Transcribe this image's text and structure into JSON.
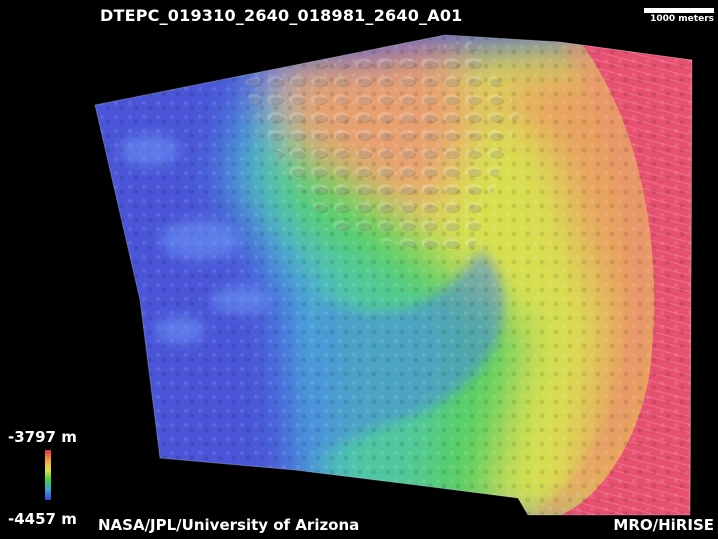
{
  "title": "DTEPC_019310_2640_018981_2640_A01",
  "scale_bar": {
    "label": "1000 meters"
  },
  "legend": {
    "max_label": "-3797 m",
    "min_label": "-4457 m",
    "colors": [
      "#e03040",
      "#f0a040",
      "#e8e040",
      "#40d040",
      "#40a0e0",
      "#4040d0"
    ]
  },
  "credits": {
    "left": "NASA/JPL/University of Arizona",
    "right": "MRO/HiRISE"
  },
  "terrain_colors": {
    "low": "#4a55d8",
    "mid_low": "#4aa0e0",
    "mid": "#58d060",
    "mid_high": "#d8e050",
    "high": "#e8a060",
    "peak": "#e85070"
  }
}
